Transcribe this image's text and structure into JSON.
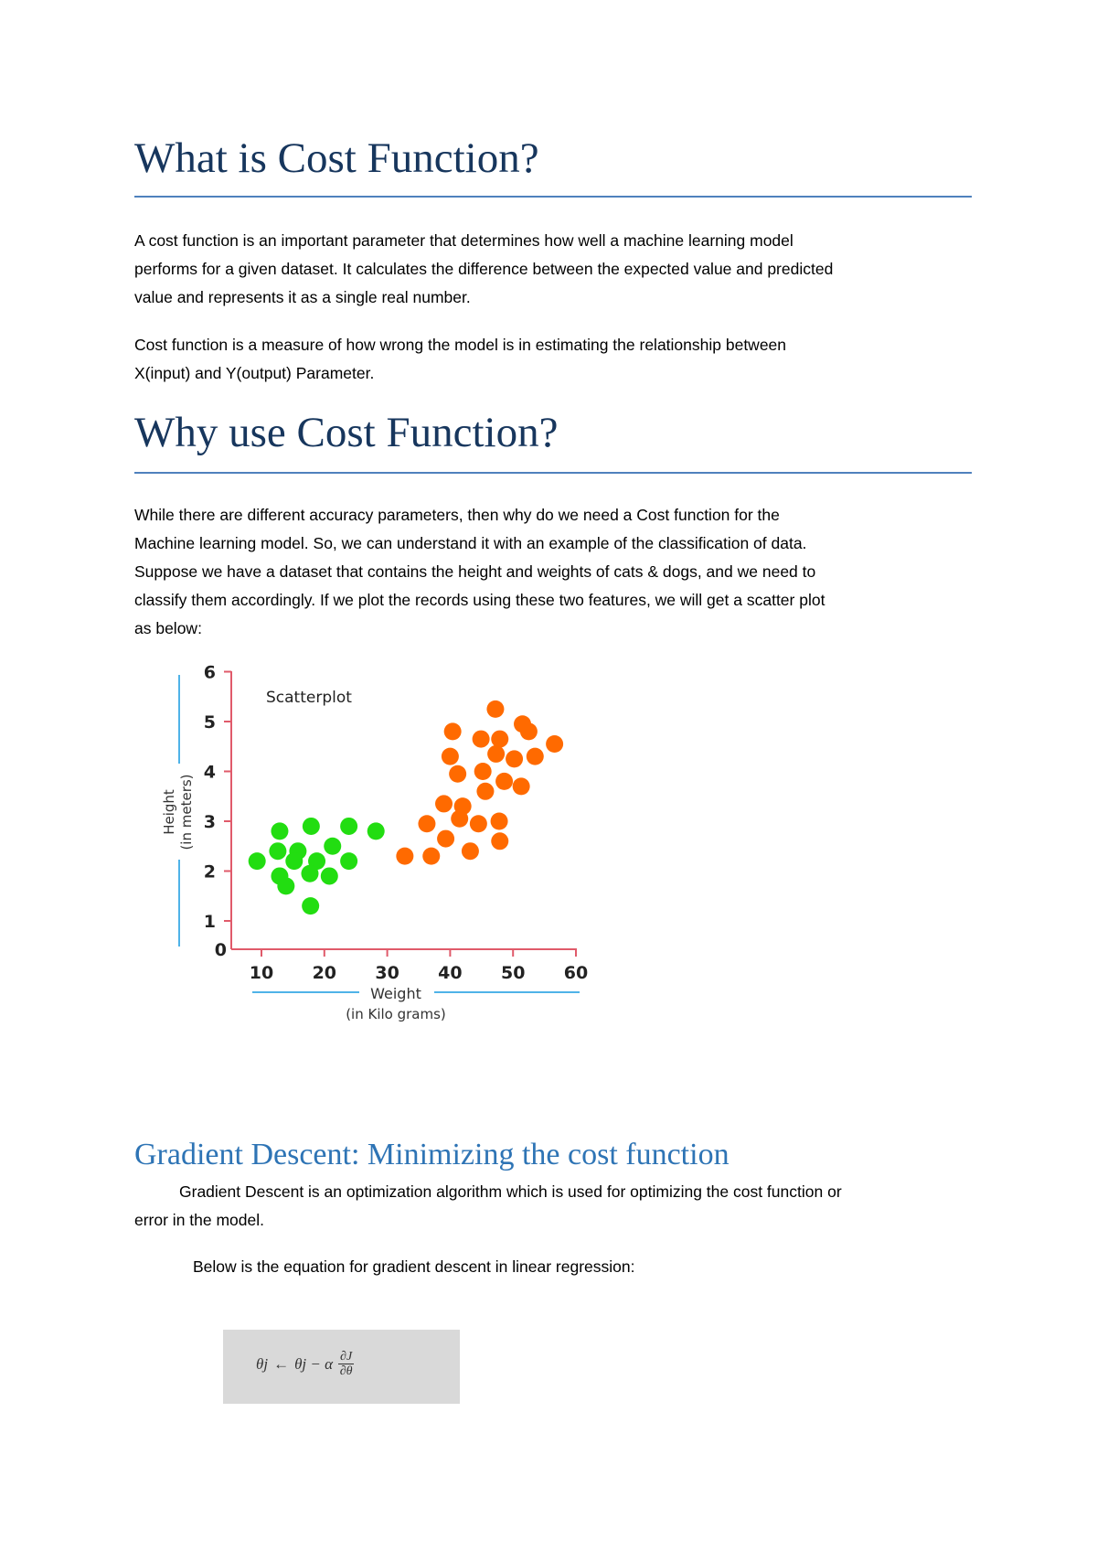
{
  "section1": {
    "title": "What is Cost Function?",
    "para1": [
      "A cost function is an important parameter that determines how well a machine learning model",
      "performs for a given dataset. It calculates the difference between the expected value and predicted",
      "value and represents it as a single real number."
    ],
    "para2": [
      "Cost function is a measure of how wrong the model is in estimating the relationship between",
      "X(input) and Y(output) Parameter."
    ]
  },
  "section2": {
    "title": "Why use Cost Function?",
    "para1": [
      "While there are different accuracy parameters, then why do we need a Cost function for the",
      "Machine learning model. So, we can understand it with an example of the classification of data.",
      "Suppose we have a dataset that contains the height and weights of cats & dogs, and we need to",
      "classify them accordingly. If we plot the records using these two features, we will get a scatter plot",
      "as below:"
    ]
  },
  "chart_data": {
    "type": "scatter",
    "title": "Scatterplot",
    "xlabel": "Weight",
    "xlabel_sub": "(in Kilo grams)",
    "ylabel": "Height",
    "ylabel_sub": "(in meters)",
    "xticks": [
      10,
      20,
      30,
      40,
      50,
      60
    ],
    "yticks": [
      0,
      1,
      2,
      3,
      4,
      5,
      6
    ],
    "xlim": [
      5,
      60
    ],
    "ylim": [
      0,
      6
    ],
    "grid": false,
    "colors": {
      "axis": "#e05a6a",
      "label_lines": "#4fb3e8",
      "green": "#22dd11",
      "orange": "#ff6a00"
    },
    "series": [
      {
        "color": "#22dd11",
        "points": [
          [
            9.3,
            2.2
          ],
          [
            12.9,
            2.8
          ],
          [
            12.6,
            2.4
          ],
          [
            15.8,
            2.4
          ],
          [
            15.2,
            2.2
          ],
          [
            17.9,
            2.9
          ],
          [
            18.8,
            2.2
          ],
          [
            21.3,
            2.5
          ],
          [
            23.9,
            2.9
          ],
          [
            23.9,
            2.2
          ],
          [
            28.2,
            2.8
          ],
          [
            12.9,
            1.9
          ],
          [
            13.9,
            1.7
          ],
          [
            17.7,
            1.95
          ],
          [
            20.8,
            1.9
          ],
          [
            17.8,
            1.3
          ]
        ]
      },
      {
        "color": "#ff6a00",
        "points": [
          [
            32.8,
            2.3
          ],
          [
            37.0,
            2.3
          ],
          [
            43.2,
            2.4
          ],
          [
            47.9,
            2.6
          ],
          [
            47.8,
            3.0
          ],
          [
            44.5,
            2.95
          ],
          [
            41.5,
            3.05
          ],
          [
            39.3,
            2.65
          ],
          [
            36.3,
            2.95
          ],
          [
            39.0,
            3.35
          ],
          [
            42.0,
            3.3
          ],
          [
            45.6,
            3.6
          ],
          [
            48.6,
            3.8
          ],
          [
            51.3,
            3.7
          ],
          [
            45.2,
            4.0
          ],
          [
            41.2,
            3.95
          ],
          [
            40.0,
            4.3
          ],
          [
            47.3,
            4.35
          ],
          [
            50.2,
            4.25
          ],
          [
            53.5,
            4.3
          ],
          [
            56.6,
            4.55
          ],
          [
            47.9,
            4.65
          ],
          [
            44.9,
            4.65
          ],
          [
            40.4,
            4.8
          ],
          [
            51.5,
            4.95
          ],
          [
            52.5,
            4.8
          ],
          [
            47.2,
            5.25
          ]
        ]
      }
    ]
  },
  "section3": {
    "title": "Gradient Descent: Minimizing the cost function",
    "para1": [
      "Gradient Descent is an optimization algorithm which is used for optimizing the cost function or",
      "error in the model."
    ],
    "para2": "Below is the equation for gradient descent in linear regression:",
    "equation": {
      "lhs": "θj",
      "assign": "←",
      "rhs": "θj − α",
      "num": "∂J",
      "den": "∂θ"
    }
  }
}
